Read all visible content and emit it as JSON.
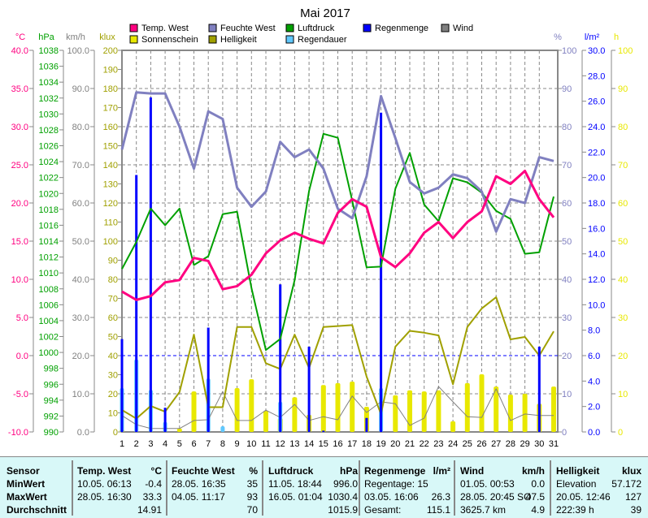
{
  "chart_data": {
    "type": "line",
    "title": "Mai 2017",
    "x": [
      1,
      2,
      3,
      4,
      5,
      6,
      7,
      8,
      9,
      10,
      11,
      12,
      13,
      14,
      15,
      16,
      17,
      18,
      19,
      20,
      21,
      22,
      23,
      24,
      25,
      26,
      27,
      28,
      29,
      30,
      31
    ],
    "legend": [
      {
        "name": "Temp. West",
        "color": "#ff0080"
      },
      {
        "name": "Feuchte West",
        "color": "#8080c0"
      },
      {
        "name": "Luftdruck",
        "color": "#00a000"
      },
      {
        "name": "Regenmenge",
        "color": "#0000ff"
      },
      {
        "name": "Wind",
        "color": "#808080"
      },
      {
        "name": "Sonnenschein",
        "color": "#e8e800"
      },
      {
        "name": "Helligkeit",
        "color": "#a0a000"
      },
      {
        "name": "Regendauer",
        "color": "#60c8ff"
      }
    ],
    "axes": {
      "temp": {
        "unit": "°C",
        "range": [
          -10,
          40
        ],
        "step": 5,
        "color": "#ff0080",
        "ticks": [
          "-10.0",
          "-5.0",
          "0.0",
          "5.0",
          "10.0",
          "15.0",
          "20.0",
          "25.0",
          "30.0",
          "35.0",
          "40.0"
        ]
      },
      "pressure": {
        "unit": "hPa",
        "range": [
          990,
          1038
        ],
        "step": 2,
        "color": "#00a000"
      },
      "wind": {
        "unit": "km/h",
        "range": [
          0,
          100
        ],
        "step": 10,
        "color": "#808080"
      },
      "klux": {
        "unit": "klux",
        "range": [
          0,
          200
        ],
        "step": 10,
        "color": "#a0a000"
      },
      "humidity": {
        "unit": "%",
        "range": [
          0,
          100
        ],
        "step": 10,
        "color": "#8080c0"
      },
      "rain": {
        "unit": "l/m²",
        "range": [
          0,
          30
        ],
        "step": 2,
        "color": "#0000ff"
      },
      "hours": {
        "unit": "h",
        "range": [
          0,
          100
        ],
        "step": 10,
        "color": "#e8e800"
      }
    },
    "series": [
      {
        "name": "Temp. West",
        "axis": "temp",
        "kind": "line",
        "values": [
          8.4,
          7.3,
          7.8,
          9.6,
          9.9,
          12.8,
          12.4,
          8.7,
          9.1,
          10.6,
          13.4,
          15.1,
          16.1,
          15.3,
          14.7,
          18.7,
          20.5,
          19.5,
          12.9,
          11.6,
          13.4,
          16.1,
          17.5,
          15.4,
          17.5,
          18.9,
          23.5,
          22.5,
          24.2,
          20.5,
          18.1
        ]
      },
      {
        "name": "Feuchte West",
        "axis": "humidity",
        "kind": "line",
        "values": [
          74,
          89,
          88.7,
          88.7,
          80,
          69,
          84,
          82,
          64,
          59,
          63,
          76,
          72,
          74,
          69,
          58.5,
          56,
          67,
          88,
          77,
          65.5,
          62.5,
          64,
          67.5,
          66.5,
          63,
          52.5,
          61,
          60,
          72,
          71
        ]
      },
      {
        "name": "Luftdruck",
        "axis": "pressure",
        "kind": "line",
        "values": [
          1010.5,
          1013.9,
          1018.1,
          1016,
          1018.1,
          1011,
          1012.1,
          1017.4,
          1017.7,
          1008.1,
          1000.3,
          1001.7,
          1009.1,
          1020.3,
          1027.5,
          1027,
          1019.1,
          1010.7,
          1010.8,
          1020.6,
          1025.1,
          1018.6,
          1016.5,
          1021.9,
          1021.4,
          1020.1,
          1017.8,
          1016.8,
          1012.4,
          1012.6,
          1019.6
        ]
      },
      {
        "name": "Helligkeit",
        "axis": "klux",
        "kind": "line",
        "values": [
          11.5,
          7,
          13.6,
          10.6,
          20.9,
          51,
          13,
          13,
          55,
          55,
          36,
          33,
          51,
          33.5,
          55,
          55.5,
          56,
          29,
          9.4,
          44.7,
          53,
          52,
          50.6,
          25,
          55,
          64.7,
          70.6,
          48.5,
          49.8,
          40,
          52.7
        ]
      },
      {
        "name": "Wind",
        "axis": "wind",
        "kind": "line",
        "values": [
          4.3,
          1.9,
          0.9,
          0.9,
          0.9,
          3,
          3.2,
          10.6,
          3,
          3,
          5.7,
          3.8,
          7.2,
          3,
          4,
          3.2,
          9.4,
          5.1,
          7.9,
          7.4,
          1.7,
          3.6,
          11.9,
          7.9,
          4,
          3.8,
          11.3,
          3,
          4.7,
          4.3,
          4.3
        ]
      },
      {
        "name": "Sonnenschein",
        "axis": "hours",
        "kind": "bar",
        "values": [
          0.5,
          0,
          0,
          0,
          0.9,
          10.6,
          0,
          0,
          11.5,
          13.8,
          5.5,
          3.6,
          9.1,
          4.5,
          12.3,
          12.8,
          13.2,
          6.6,
          0,
          9.6,
          10.9,
          10.6,
          10.9,
          2.8,
          12.8,
          15.1,
          11.9,
          9.8,
          10,
          7.4,
          11.9
        ]
      },
      {
        "name": "Regendauer",
        "axis": "hours",
        "kind": "bar",
        "values": [
          11.5,
          19,
          11,
          2.6,
          0,
          0,
          14,
          1.5,
          0,
          0,
          0,
          7.9,
          0,
          0,
          0,
          0,
          0,
          0,
          11.5,
          0,
          0,
          0,
          0,
          0,
          0,
          0,
          0,
          0,
          0,
          0,
          0
        ]
      },
      {
        "name": "Regenmenge",
        "axis": "rain",
        "kind": "bar",
        "values": [
          7.3,
          20.2,
          26.3,
          1.9,
          0,
          0,
          8.2,
          0,
          0,
          0,
          0,
          11.6,
          0,
          6.7,
          0.1,
          0,
          0,
          1.1,
          25.1,
          0,
          0,
          0,
          0,
          0,
          0,
          0,
          0,
          0,
          0,
          6.7,
          0
        ]
      }
    ],
    "reference_line": {
      "axis": "rain",
      "value": 6.0
    }
  },
  "table": {
    "headers": {
      "sensor": "Sensor",
      "temp": "Temp. West",
      "temp_unit": "°C",
      "hum": "Feuchte West",
      "hum_unit": "%",
      "press": "Luftdruck",
      "press_unit": "hPa",
      "rain": "Regenmenge",
      "rain_unit": "l/m²",
      "wind": "Wind",
      "wind_unit": "km/h",
      "light": "Helligkeit",
      "light_unit": "klux"
    },
    "rows": {
      "min": "MinWert",
      "max": "MaxWert",
      "avg": "Durchschnitt"
    },
    "temp": {
      "min_time": "10.05.  06:13",
      "min": "-0.4",
      "max_time": "28.05.  16:30",
      "max": "33.3",
      "avg": "14.91"
    },
    "hum": {
      "min_time": "28.05.  16:35",
      "min": "35",
      "max_time": "04.05.  11:17",
      "max": "93",
      "avg": "70"
    },
    "press": {
      "min_time": "11.05.  18:44",
      "min": "996.0",
      "max_time": "16.05.  01:04",
      "max": "1030.4",
      "avg": "1015.9"
    },
    "rain": {
      "r1": "Regentage: 15",
      "r2_time": "03.05.  16:06",
      "r2": "26.3",
      "r3_label": "Gesamt:",
      "r3": "115.1"
    },
    "wind": {
      "min_time": "01.05.  00:53",
      "min": "0.0",
      "max_time": "28.05.  20:45 SO",
      "max": "47.5",
      "dist": "3625.7 km",
      "avg": "4.9"
    },
    "light": {
      "r1_label": "Elevation",
      "r1": "57.172",
      "r2_time": "20.05.  12:46",
      "r2": "127",
      "r3_label": "222:39 h",
      "r3": "39"
    }
  }
}
